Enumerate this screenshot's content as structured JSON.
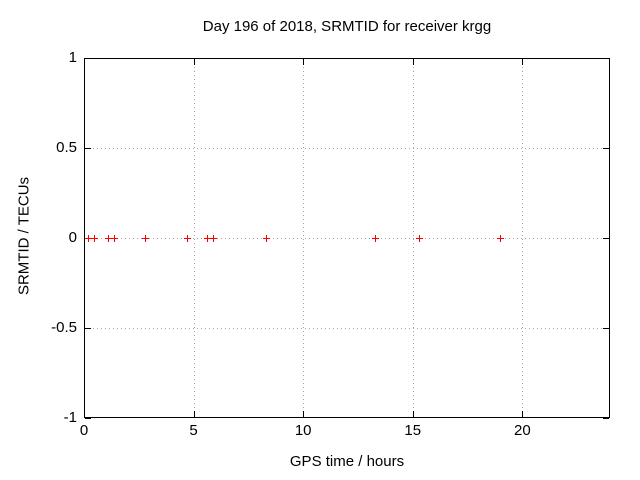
{
  "chart_data": {
    "type": "scatter",
    "title": "Day 196 of 2018, SRMTID for receiver krgg",
    "xlabel": "GPS time / hours",
    "ylabel": "SRMTID / TECUs",
    "xlim": [
      0,
      24
    ],
    "ylim": [
      -1,
      1
    ],
    "xticks": [
      0,
      5,
      10,
      15,
      20
    ],
    "xtick_labels": [
      "0",
      "5",
      "10",
      "15",
      "20"
    ],
    "yticks": [
      1,
      0.5,
      0,
      -0.5,
      -1
    ],
    "ytick_labels": [
      "1",
      "0.5",
      "0",
      "-0.5",
      "-1"
    ],
    "grid": true,
    "legend_position": "none",
    "series": [
      {
        "name": "SRMTID",
        "marker": "plus",
        "color": "#ff0000",
        "x": [
          0.2,
          0.45,
          1.1,
          1.35,
          2.8,
          4.7,
          5.6,
          5.9,
          8.3,
          13.3,
          15.3,
          19.0
        ],
        "y": [
          0,
          0,
          0,
          0,
          0,
          0,
          0,
          0,
          0,
          0,
          0,
          0
        ]
      }
    ]
  },
  "colors": {
    "background": "#ffffff",
    "axis": "#000000",
    "grid": "#a6a6a6",
    "text": "#000000",
    "marker": "#ff0000"
  }
}
